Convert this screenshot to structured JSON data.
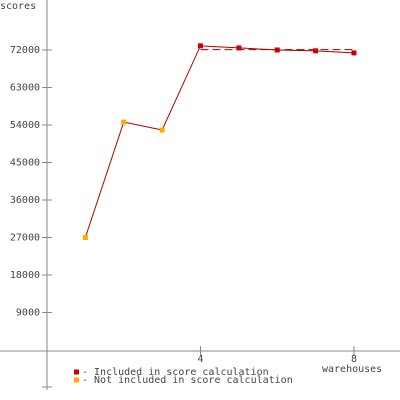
{
  "chart_data": {
    "type": "line",
    "y_label": "scores",
    "x_label": "warehouses",
    "x": [
      1,
      2,
      3,
      4,
      5,
      6,
      7,
      8
    ],
    "line_color": "#aa0000",
    "series": [
      {
        "name": "- Included in score calculation",
        "color": "#cc0000",
        "values": [
          null,
          null,
          null,
          73000,
          72500,
          72000,
          71800,
          71300
        ]
      },
      {
        "name": "- Not included in score calculation",
        "color": "#ffaa00",
        "values": [
          27000,
          54700,
          52800,
          null,
          null,
          null,
          null,
          null
        ]
      }
    ],
    "score": 72100,
    "xlim": [
      0,
      9.2
    ],
    "xticks": [
      4,
      8
    ],
    "ylim": [
      -9600,
      84000
    ],
    "yticks": [
      9000,
      18000,
      27000,
      36000,
      45000,
      54000,
      63000,
      72000
    ]
  }
}
